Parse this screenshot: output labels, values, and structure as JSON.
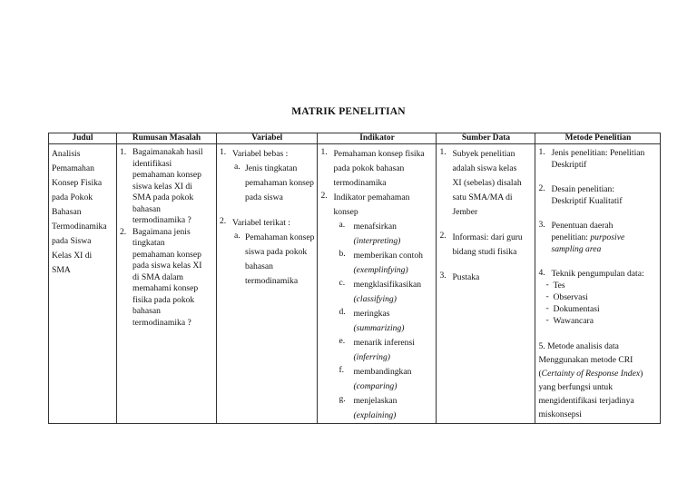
{
  "title": "MATRIK PENELITIAN",
  "headers": [
    "Judul",
    "Rumusan Masalah",
    "Variabel",
    "Indikator",
    "Sumber Data",
    "Metode Penelitian"
  ],
  "columns": {
    "judul": {
      "items": [
        {
          "marker": "",
          "lines": [
            "Analisis",
            "Pemamahan",
            "Konsep Fisika",
            "pada Pokok",
            "Bahasan",
            "Termodinamika",
            "pada Siswa",
            "Kelas XI di",
            "SMA"
          ]
        }
      ]
    },
    "rumusan": {
      "items": [
        {
          "marker": "1.",
          "lines": [
            "Bagaimanakah hasil",
            "identifikasi",
            "pemahaman konsep",
            "siswa kelas XI di",
            "SMA pada pokok",
            "bahasan",
            "termodinamika ?"
          ]
        },
        {
          "marker": "2.",
          "lines": [
            "Bagaimana jenis",
            "tingkatan",
            "pemahaman konsep",
            "pada siswa kelas XI",
            "di SMA dalam",
            "memahami konsep",
            "fisika pada pokok",
            "bahasan",
            "termodinamika ?"
          ]
        }
      ]
    },
    "variabel": {
      "items": [
        {
          "marker": "1.",
          "lines": [
            "Variabel bebas :"
          ],
          "sub": [
            {
              "marker": "a.",
              "lines": [
                "Jenis tingkatan",
                "pemahaman konsep",
                "pada siswa"
              ]
            }
          ]
        },
        {
          "marker": "2.",
          "lines": [
            "Variabel terikat :"
          ],
          "sub": [
            {
              "marker": "a.",
              "lines": [
                "Pemahaman konsep",
                "siswa pada pokok",
                "bahasan",
                "termodinamika"
              ]
            }
          ]
        }
      ]
    },
    "indikator": {
      "items": [
        {
          "marker": "1.",
          "lines": [
            "Pemahaman konsep fisika",
            "pada pokok bahasan",
            "termodinamika"
          ]
        },
        {
          "marker": "2.",
          "lines": [
            "Indikator pemahaman",
            "konsep"
          ],
          "sub": [
            {
              "marker": "a.",
              "lines": [
                "menafsirkan",
                {
                  "text": "(interpreting)",
                  "italic": true
                }
              ]
            },
            {
              "marker": "b.",
              "lines": [
                "memberikan contoh",
                {
                  "text": "(exemplinfying)",
                  "italic": true
                }
              ]
            },
            {
              "marker": "c.",
              "lines": [
                "mengklasifikasikan",
                {
                  "text": "(classifying)",
                  "italic": true
                }
              ]
            },
            {
              "marker": "d.",
              "lines": [
                "meringkas",
                {
                  "text": "(summarizing)",
                  "italic": true
                }
              ]
            },
            {
              "marker": "e.",
              "lines": [
                "menarik inferensi",
                {
                  "text": "(inferring)",
                  "italic": true
                }
              ]
            },
            {
              "marker": "f.",
              "lines": [
                "membandingkan",
                {
                  "text": "(comparing)",
                  "italic": true
                }
              ]
            },
            {
              "marker": "g.",
              "lines": [
                "menjelaskan",
                {
                  "text": "(explaining)",
                  "italic": true
                }
              ]
            }
          ]
        }
      ]
    },
    "sumber": {
      "items": [
        {
          "marker": "1.",
          "lines": [
            "Subyek penelitian",
            "adalah siswa kelas",
            "XI (sebelas) disalah",
            "satu SMA/MA di",
            "Jember"
          ]
        },
        {
          "marker": "2.",
          "lines": [
            "Informasi: dari guru",
            "bidang studi fisika"
          ]
        },
        {
          "marker": "3.",
          "lines": [
            "Pustaka"
          ]
        }
      ]
    },
    "metode": {
      "items": [
        {
          "marker": "1.",
          "lines": [
            "Jenis penelitian: Penelitian",
            "Deskriptif"
          ]
        },
        {
          "marker": "2.",
          "lines": [
            "Desain penelitian:",
            "Deskriptif Kualitatif"
          ]
        },
        {
          "marker": "3.",
          "lines": [
            "Penentuan daerah",
            [
              {
                "text": "penelitian: "
              },
              {
                "text": "purposive",
                "italic": true
              }
            ],
            {
              "text": "sampling area",
              "italic": true
            }
          ]
        },
        {
          "marker": "4.",
          "lines": [
            "Teknik pengumpulan data:"
          ],
          "sub": [
            {
              "marker": "-",
              "lines": [
                "Tes"
              ]
            },
            {
              "marker": "-",
              "lines": [
                "Observasi"
              ]
            },
            {
              "marker": "-",
              "lines": [
                "Dokumentasi"
              ]
            },
            {
              "marker": "-",
              "lines": [
                "Wawancara"
              ]
            }
          ]
        },
        {
          "marker": "",
          "lines": [
            "5.  Metode analisis data",
            "Menggunakan metode  CRI",
            [
              {
                "text": "("
              },
              {
                "text": "Certainty of Response Index",
                "italic": true
              },
              {
                "text": ")"
              }
            ],
            "yang berfungsi untuk",
            "mengidentifikasi terjadinya",
            "miskonsepsi"
          ]
        }
      ]
    }
  }
}
